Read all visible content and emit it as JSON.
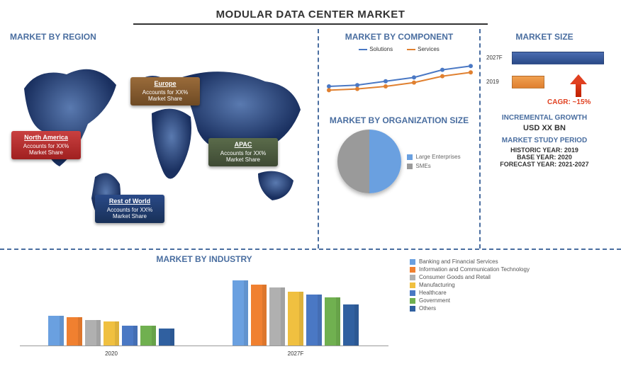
{
  "title": "MODULAR DATA CENTER MARKET",
  "region": {
    "title": "MARKET BY REGION",
    "callouts": {
      "na": {
        "name": "North America",
        "text": "Accounts for XX% Market Share"
      },
      "eu": {
        "name": "Europe",
        "text": "Accounts for XX% Market Share"
      },
      "apac": {
        "name": "APAC",
        "text": "Accounts for XX% Market Share"
      },
      "row": {
        "name": "Rest of World",
        "text": "Accounts for XX% Market Share"
      }
    },
    "map_colors": {
      "land_dark": "#2a4a88",
      "land_light": "#4a6ea0"
    }
  },
  "component": {
    "title": "MARKET BY COMPONENT",
    "series": [
      {
        "name": "Solutions",
        "color": "#4a78c4",
        "points": [
          20,
          22,
          28,
          34,
          46,
          52
        ]
      },
      {
        "name": "Services",
        "color": "#e08030",
        "points": [
          14,
          16,
          20,
          26,
          36,
          42
        ]
      }
    ],
    "xlabels": [
      "",
      "",
      "",
      "",
      "",
      ""
    ],
    "ylim": [
      0,
      60
    ]
  },
  "org": {
    "title": "MARKET BY ORGANIZATION SIZE",
    "slices": [
      {
        "name": "Large Enterprises",
        "color": "#6aa0e0",
        "pct": 50
      },
      {
        "name": "SMEs",
        "color": "#9a9a9a",
        "pct": 50
      }
    ]
  },
  "size": {
    "title": "MARKET SIZE",
    "bars": [
      {
        "label": "2027F",
        "value": 130,
        "color": "#2a4a88"
      },
      {
        "label": "2019",
        "value": 46,
        "color": "#e08030"
      }
    ],
    "cagr": "CAGR: ~15%",
    "incremental_title": "INCREMENTAL GROWTH",
    "incremental_value": "USD XX BN",
    "study_title": "MARKET STUDY PERIOD",
    "historic": "HISTORIC YEAR: 2019",
    "base": "BASE YEAR: 2020",
    "forecast": "FORECAST YEAR: 2021-2027"
  },
  "industry": {
    "title": "MARKET BY INDUSTRY",
    "categories": [
      {
        "name": "Banking and Financial Services",
        "color": "#6aa0e0"
      },
      {
        "name": "Information and Communication Technology",
        "color": "#f08030"
      },
      {
        "name": "Consumer Goods and Retail",
        "color": "#b0b0b0"
      },
      {
        "name": "Manufacturing",
        "color": "#f0c040"
      },
      {
        "name": "Healthcare",
        "color": "#4a78c4"
      },
      {
        "name": "Government",
        "color": "#70b050"
      },
      {
        "name": "Others",
        "color": "#3060a0"
      }
    ],
    "groups": [
      {
        "label": "2020",
        "values": [
          42,
          40,
          36,
          34,
          28,
          28,
          24
        ]
      },
      {
        "label": "2027F",
        "values": [
          92,
          86,
          82,
          76,
          72,
          68,
          58
        ]
      }
    ],
    "ymax": 100
  }
}
